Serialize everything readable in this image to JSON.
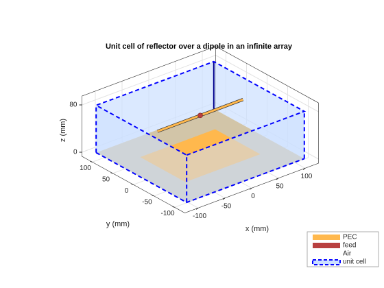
{
  "chart_data": {
    "type": "surface3d",
    "title": "Unit cell of reflector  over a dipole in an infinite array",
    "xlabel": "x (mm)",
    "ylabel": "y (mm)",
    "zlabel": "z (mm)",
    "xlim": [
      -125,
      125
    ],
    "xticks": [
      -100,
      -50,
      0,
      50,
      100
    ],
    "ylim": [
      -125,
      125
    ],
    "yticks": [
      -100,
      -50,
      0,
      50,
      100
    ],
    "zlim": [
      -7,
      95
    ],
    "zticks": [
      0,
      80
    ],
    "grid": true,
    "series": [
      {
        "name": "PEC",
        "color": "#ffb84d"
      },
      {
        "name": "feed",
        "color": "#b94040"
      },
      {
        "name": "Air",
        "color": "#cce0ff"
      },
      {
        "name": "unit cell",
        "color": "#0000ff"
      }
    ]
  }
}
